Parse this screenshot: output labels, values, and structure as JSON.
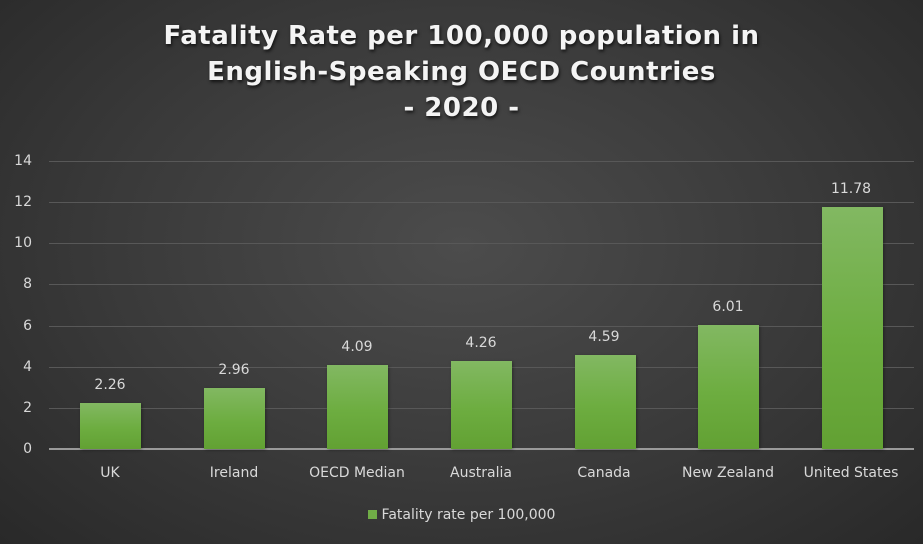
{
  "chart_data": {
    "type": "bar",
    "title": "Fatality Rate per 100,000 population in English-Speaking OECD Countries - 2020 -",
    "title_lines": [
      "Fatality Rate per 100,000 population in",
      "English-Speaking OECD Countries",
      "- 2020 -"
    ],
    "categories": [
      "UK",
      "Ireland",
      "OECD Median",
      "Australia",
      "Canada",
      "New Zealand",
      "United States"
    ],
    "series": [
      {
        "name": "Fatality rate per 100,000",
        "values": [
          2.26,
          2.96,
          4.09,
          4.26,
          4.59,
          6.01,
          11.78
        ],
        "labels": [
          "2.26",
          "2.96",
          "4.09",
          "4.26",
          "4.59",
          "6.01",
          "11.78"
        ],
        "color": "#70ad47"
      }
    ],
    "xlabel": "",
    "ylabel": "",
    "ylim": [
      0,
      14
    ],
    "yticks": [
      "0",
      "2",
      "4",
      "6",
      "8",
      "10",
      "12",
      "14"
    ],
    "grid": true,
    "legend_position": "bottom",
    "background": "#3a3a3a"
  }
}
